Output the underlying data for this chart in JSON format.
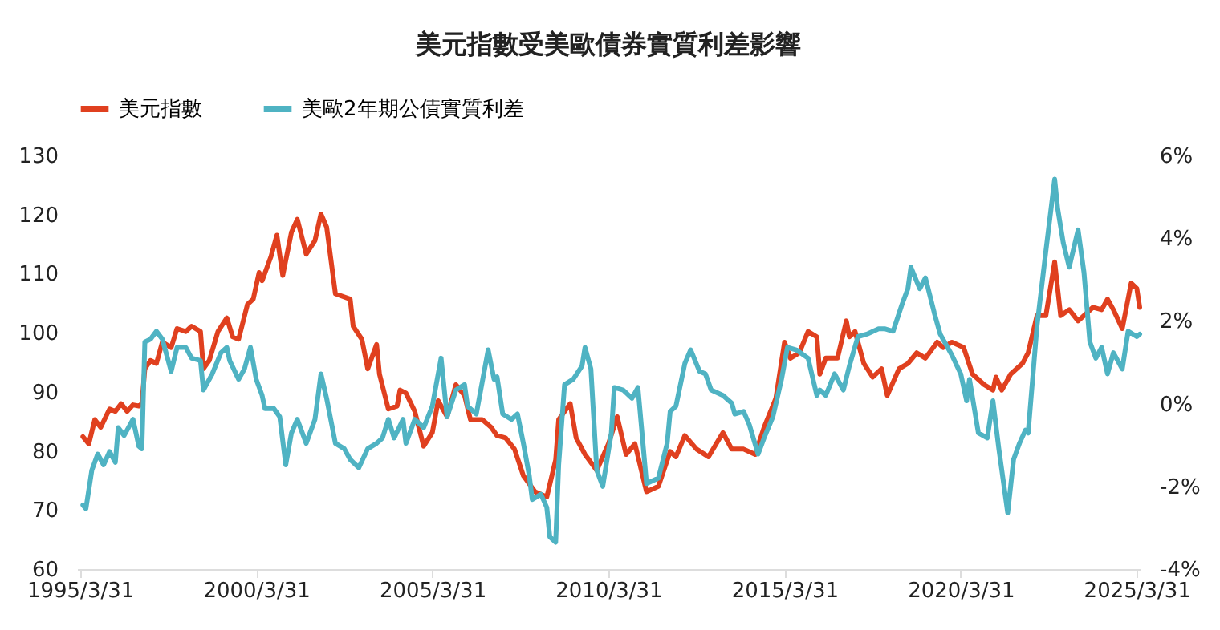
{
  "chart_data": {
    "type": "line",
    "title": "美元指數受美歐債券實質利差影響",
    "legend": "top",
    "grid": false,
    "xlim": [
      "1995-03",
      "2025-05"
    ],
    "xticks": [
      {
        "value": "1995-03-31",
        "label": "1995/3/31"
      },
      {
        "value": "2000-03-31",
        "label": "2000/3/31"
      },
      {
        "value": "2005-03-31",
        "label": "2005/3/31"
      },
      {
        "value": "2010-03-31",
        "label": "2010/3/31"
      },
      {
        "value": "2015-03-31",
        "label": "2015/3/31"
      },
      {
        "value": "2020-03-31",
        "label": "2020/3/31"
      },
      {
        "value": "2025-03-31",
        "label": "2025/3/31"
      }
    ],
    "ylim": [
      60,
      130
    ],
    "yticks": [
      60,
      70,
      80,
      90,
      100,
      110,
      120,
      130
    ],
    "y2lim": [
      -4,
      6
    ],
    "y2ticks": [
      {
        "value": -4,
        "label": "-4%"
      },
      {
        "value": -2,
        "label": "-2%"
      },
      {
        "value": 0,
        "label": "0%"
      },
      {
        "value": 2,
        "label": "2%"
      },
      {
        "value": 4,
        "label": "4%"
      },
      {
        "value": 6,
        "label": "6%"
      }
    ],
    "series": [
      {
        "name": "美元指數",
        "color": "#e0401f",
        "x": [
          "1995-05",
          "1995-07",
          "1995-09",
          "1995-11",
          "1996-02",
          "1996-04",
          "1996-06",
          "1996-08",
          "1996-10",
          "1996-12",
          "1997-01",
          "1997-02",
          "1997-04",
          "1997-06",
          "1997-08",
          "1997-11",
          "1998-01",
          "1998-04",
          "1998-06",
          "1998-09",
          "1998-10",
          "1998-12",
          "1999-03",
          "1999-06",
          "1999-08",
          "1999-10",
          "2000-01",
          "2000-03",
          "2000-05",
          "2000-06",
          "2000-09",
          "2000-11",
          "2001-01",
          "2001-04",
          "2001-06",
          "2001-09",
          "2001-12",
          "2002-02",
          "2002-04",
          "2002-07",
          "2002-12",
          "2003-01",
          "2003-04",
          "2003-06",
          "2003-09",
          "2003-10",
          "2004-01",
          "2004-04",
          "2004-05",
          "2004-07",
          "2004-10",
          "2005-01",
          "2005-04",
          "2005-06",
          "2005-09",
          "2005-12",
          "2006-03",
          "2006-05",
          "2006-09",
          "2006-12",
          "2007-02",
          "2007-05",
          "2007-08",
          "2007-11",
          "2008-03",
          "2008-07",
          "2008-10",
          "2008-11",
          "2009-03",
          "2009-05",
          "2009-08",
          "2009-12",
          "2010-04",
          "2010-07",
          "2010-10",
          "2011-01",
          "2011-05",
          "2011-09",
          "2012-01",
          "2012-03",
          "2012-06",
          "2012-10",
          "2013-02",
          "2013-07",
          "2013-10",
          "2014-02",
          "2014-06",
          "2014-09",
          "2015-01",
          "2015-04",
          "2015-06",
          "2015-09",
          "2015-12",
          "2016-03",
          "2016-04",
          "2016-06",
          "2016-10",
          "2017-01",
          "2017-02",
          "2017-04",
          "2017-07",
          "2017-10",
          "2018-01",
          "2018-03",
          "2018-07",
          "2018-10",
          "2019-01",
          "2019-04",
          "2019-08",
          "2019-10",
          "2020-01",
          "2020-05",
          "2020-08",
          "2020-12",
          "2021-03",
          "2021-04",
          "2021-06",
          "2021-09",
          "2022-01",
          "2022-03",
          "2022-06",
          "2022-09",
          "2022-12",
          "2023-02",
          "2023-05",
          "2023-08",
          "2023-10",
          "2024-01",
          "2024-04",
          "2024-06",
          "2024-08",
          "2024-11",
          "2025-02",
          "2025-04",
          "2025-05"
        ],
        "values": [
          82.4,
          81.2,
          85.3,
          84,
          87.1,
          86.7,
          88,
          86.7,
          87.8,
          87.6,
          88,
          93.9,
          95.3,
          94.8,
          98.4,
          97.5,
          100.7,
          100.2,
          101.1,
          100.2,
          93.9,
          95.3,
          100.2,
          102.5,
          99.3,
          98.9,
          104.8,
          105.7,
          110.2,
          108.8,
          112.9,
          116.5,
          109.7,
          117,
          119.2,
          113.3,
          115.6,
          120.1,
          117.9,
          106.6,
          105.7,
          101.1,
          98.9,
          93.9,
          98,
          93,
          87.1,
          87.6,
          90.3,
          89.8,
          86.7,
          80.8,
          83.1,
          88.5,
          85.8,
          91.2,
          89.4,
          85.3,
          85.3,
          84,
          82.6,
          82.2,
          80.3,
          75.8,
          73.1,
          72.2,
          78.5,
          85.3,
          88,
          82.2,
          79.4,
          76.7,
          81.2,
          85.8,
          79.4,
          81.2,
          73.1,
          74,
          79.9,
          79,
          82.6,
          80.3,
          79,
          83.1,
          80.3,
          80.3,
          79.4,
          84,
          88.9,
          98.4,
          95.7,
          96.6,
          100.2,
          99.3,
          93,
          95.7,
          95.7,
          102,
          99.3,
          100.2,
          94.8,
          92.5,
          93.9,
          89.4,
          93.9,
          94.8,
          96.6,
          95.7,
          98.4,
          97.5,
          98.4,
          97.5,
          93,
          91.2,
          90.3,
          92.5,
          90.3,
          93,
          94.8,
          96.6,
          102.9,
          102.9,
          112,
          102.9,
          103.9,
          102,
          102.9,
          104.3,
          103.9,
          105.7,
          103.9,
          100.7,
          108.4,
          107.5,
          104.3
        ]
      },
      {
        "name": "美歐2年期公債實質利差",
        "color": "#4fb3c3",
        "axis": "y2",
        "x": [
          "1995-05",
          "1995-06",
          "1995-08",
          "1995-10",
          "1995-12",
          "1996-02",
          "1996-04",
          "1996-05",
          "1996-07",
          "1996-10",
          "1996-12",
          "1997-01",
          "1997-02",
          "1997-04",
          "1997-06",
          "1997-08",
          "1997-11",
          "1998-01",
          "1998-04",
          "1998-06",
          "1998-09",
          "1998-10",
          "1999-01",
          "1999-04",
          "1999-06",
          "1999-07",
          "1999-10",
          "1999-12",
          "2000-02",
          "2000-04",
          "2000-06",
          "2000-07",
          "2000-10",
          "2000-12",
          "2001-02",
          "2001-04",
          "2001-06",
          "2001-09",
          "2001-12",
          "2002-02",
          "2002-04",
          "2002-07",
          "2002-10",
          "2002-12",
          "2003-03",
          "2003-06",
          "2003-09",
          "2003-11",
          "2004-01",
          "2004-03",
          "2004-06",
          "2004-07",
          "2004-10",
          "2005-01",
          "2005-04",
          "2005-05",
          "2005-07",
          "2005-09",
          "2005-12",
          "2006-03",
          "2006-04",
          "2006-07",
          "2006-11",
          "2007-01",
          "2007-02",
          "2007-04",
          "2007-07",
          "2007-09",
          "2007-11",
          "2008-01",
          "2008-02",
          "2008-05",
          "2008-07",
          "2008-08",
          "2008-10",
          "2008-11",
          "2009-01",
          "2009-04",
          "2009-07",
          "2009-08",
          "2009-10",
          "2009-12",
          "2010-02",
          "2010-05",
          "2010-06",
          "2010-09",
          "2010-12",
          "2011-02",
          "2011-05",
          "2011-09",
          "2011-12",
          "2012-01",
          "2012-03",
          "2012-06",
          "2012-08",
          "2012-11",
          "2013-01",
          "2013-03",
          "2013-07",
          "2013-10",
          "2013-11",
          "2014-02",
          "2014-04",
          "2014-07",
          "2014-09",
          "2014-12",
          "2015-03",
          "2015-05",
          "2015-08",
          "2015-12",
          "2016-03",
          "2016-04",
          "2016-06",
          "2016-09",
          "2016-12",
          "2017-02",
          "2017-05",
          "2017-08",
          "2017-12",
          "2018-02",
          "2018-05",
          "2018-08",
          "2018-10",
          "2018-11",
          "2019-02",
          "2019-04",
          "2019-07",
          "2019-09",
          "2020-01",
          "2020-04",
          "2020-06",
          "2020-07",
          "2020-10",
          "2021-01",
          "2021-03",
          "2021-05",
          "2021-08",
          "2021-10",
          "2021-12",
          "2022-02",
          "2022-03",
          "2022-06",
          "2022-09",
          "2022-12",
          "2023-01",
          "2023-03",
          "2023-05",
          "2023-08",
          "2023-10",
          "2023-12",
          "2024-02",
          "2024-04",
          "2024-06",
          "2024-08",
          "2024-11",
          "2025-01",
          "2025-04",
          "2025-05"
        ],
        "values": [
          -2.45,
          -2.54,
          -1.61,
          -1.22,
          -1.48,
          -1.16,
          -1.42,
          -0.58,
          -0.77,
          -0.38,
          -1.03,
          -1.09,
          1.49,
          1.56,
          1.75,
          1.56,
          0.78,
          1.36,
          1.36,
          1.1,
          1.04,
          0.33,
          0.72,
          1.23,
          1.36,
          1.04,
          0.59,
          0.84,
          1.36,
          0.59,
          0.2,
          -0.12,
          -0.12,
          -0.32,
          -1.48,
          -0.71,
          -0.38,
          -0.96,
          -0.38,
          0.72,
          0.13,
          -0.96,
          -1.09,
          -1.35,
          -1.55,
          -1.09,
          -0.96,
          -0.83,
          -0.38,
          -0.83,
          -0.38,
          -0.96,
          -0.38,
          -0.58,
          -0.06,
          0.33,
          1.1,
          -0.32,
          0.33,
          0.46,
          -0.06,
          -0.25,
          1.3,
          0.59,
          0.65,
          -0.25,
          -0.38,
          -0.25,
          -0.96,
          -1.74,
          -2.32,
          -2.19,
          -2.51,
          -3.22,
          -3.35,
          -1.48,
          0.46,
          0.59,
          0.91,
          1.36,
          0.84,
          -1.61,
          -2.0,
          -0.71,
          0.39,
          0.33,
          0.13,
          0.39,
          -1.93,
          -1.8,
          -0.96,
          -0.19,
          -0.06,
          0.97,
          1.3,
          0.78,
          0.72,
          0.33,
          0.2,
          0.01,
          -0.25,
          -0.19,
          -0.51,
          -1.22,
          -0.83,
          -0.32,
          0.59,
          1.36,
          1.3,
          1.1,
          0.2,
          0.33,
          0.2,
          0.72,
          0.33,
          0.91,
          1.62,
          1.68,
          1.81,
          1.81,
          1.75,
          2.4,
          2.78,
          3.3,
          2.78,
          3.04,
          2.2,
          1.68,
          1.17,
          0.72,
          0.07,
          0.59,
          -0.71,
          -0.83,
          0.07,
          -1.09,
          -2.64,
          -1.35,
          -0.96,
          -0.64,
          -0.71,
          1.88,
          3.69,
          5.43,
          4.72,
          3.88,
          3.3,
          4.2,
          3.17,
          1.49,
          1.1,
          1.36,
          0.72,
          1.23,
          0.84,
          1.75,
          1.62,
          1.68
        ]
      }
    ]
  }
}
